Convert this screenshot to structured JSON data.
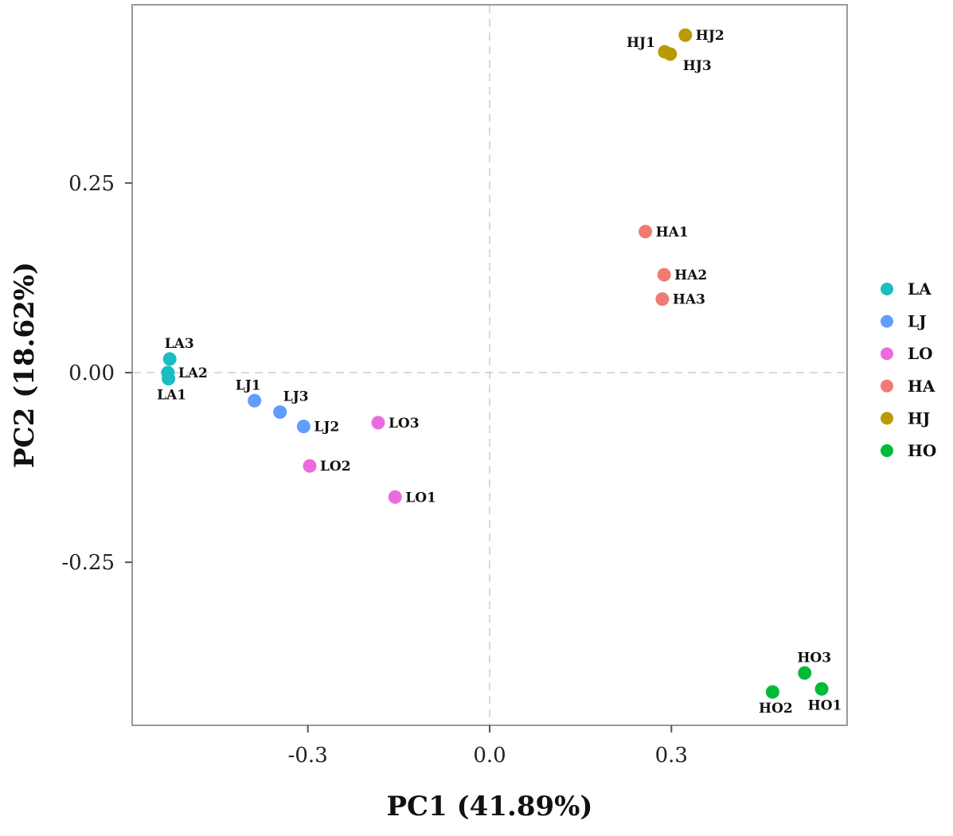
{
  "chart_data": {
    "type": "scatter",
    "title": "",
    "xlabel": "PC1 (41.89%)",
    "ylabel": "PC2 (18.62%)",
    "xlim": [
      -0.59,
      0.59
    ],
    "ylim": [
      -0.465,
      0.485
    ],
    "xticks": [
      -0.3,
      0.0,
      0.3
    ],
    "xtick_labels": [
      "-0.3",
      "0.0",
      "0.3"
    ],
    "yticks": [
      -0.25,
      0.0,
      0.25
    ],
    "ytick_labels": [
      "-0.25",
      "0.00",
      "0.25"
    ],
    "grid": false,
    "reference_lines": {
      "x": 0.0,
      "y": 0.0,
      "style": "dashed"
    },
    "legend_position": "right",
    "series": [
      {
        "name": "LA",
        "color": "#19BDC2",
        "points": [
          {
            "label": "LA3",
            "x": -0.528,
            "y": 0.018,
            "label_pos": "top"
          },
          {
            "label": "LA2",
            "x": -0.531,
            "y": 0.0,
            "label_pos": "right"
          },
          {
            "label": "LA1",
            "x": -0.53,
            "y": -0.008,
            "label_pos": "bottom"
          }
        ]
      },
      {
        "name": "LJ",
        "color": "#619CFF",
        "points": [
          {
            "label": "LJ1",
            "x": -0.388,
            "y": -0.037,
            "label_pos": "topleft"
          },
          {
            "label": "LJ3",
            "x": -0.346,
            "y": -0.052,
            "label_pos": "topright"
          },
          {
            "label": "LJ2",
            "x": -0.307,
            "y": -0.071,
            "label_pos": "right"
          }
        ]
      },
      {
        "name": "LO",
        "color": "#EB6BDE",
        "points": [
          {
            "label": "LO3",
            "x": -0.184,
            "y": -0.066,
            "label_pos": "right"
          },
          {
            "label": "LO2",
            "x": -0.297,
            "y": -0.123,
            "label_pos": "right"
          },
          {
            "label": "LO1",
            "x": -0.156,
            "y": -0.164,
            "label_pos": "right"
          }
        ]
      },
      {
        "name": "HA",
        "color": "#F07B72",
        "points": [
          {
            "label": "HA1",
            "x": 0.257,
            "y": 0.186,
            "label_pos": "right"
          },
          {
            "label": "HA2",
            "x": 0.288,
            "y": 0.129,
            "label_pos": "right"
          },
          {
            "label": "HA3",
            "x": 0.285,
            "y": 0.097,
            "label_pos": "right"
          }
        ]
      },
      {
        "name": "HJ",
        "color": "#B99A06",
        "points": [
          {
            "label": "HJ2",
            "x": 0.323,
            "y": 0.445,
            "label_pos": "right"
          },
          {
            "label": "HJ1",
            "x": 0.289,
            "y": 0.423,
            "label_pos": "left"
          },
          {
            "label": "HJ3",
            "x": 0.298,
            "y": 0.42,
            "label_pos": "bottomright"
          }
        ]
      },
      {
        "name": "HO",
        "color": "#00BA38",
        "points": [
          {
            "label": "HO3",
            "x": 0.52,
            "y": -0.396,
            "label_pos": "top"
          },
          {
            "label": "HO2",
            "x": 0.467,
            "y": -0.421,
            "label_pos": "bottom"
          },
          {
            "label": "HO1",
            "x": 0.548,
            "y": -0.417,
            "label_pos": "bottom"
          }
        ]
      }
    ]
  }
}
